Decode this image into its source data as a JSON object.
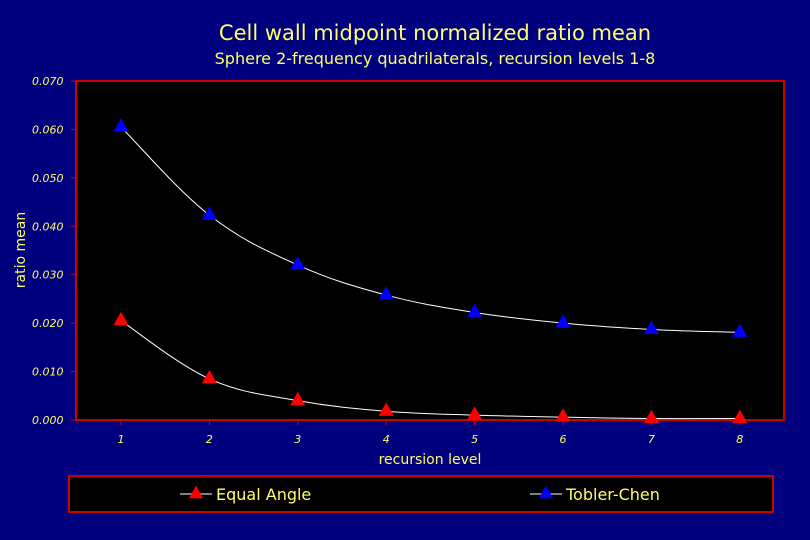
{
  "chart_data": {
    "type": "line",
    "title": "Cell wall midpoint normalized ratio mean",
    "subtitle": "Sphere 2-frequency quadrilaterals, recursion levels 1-8",
    "xlabel": "recursion level",
    "ylabel": "ratio mean",
    "categories": [
      "1",
      "2",
      "3",
      "4",
      "5",
      "6",
      "7",
      "8"
    ],
    "ylim": [
      0,
      0.07
    ],
    "yticks": [
      0.0,
      0.01,
      0.02,
      0.03,
      0.04,
      0.05,
      0.06,
      0.07
    ],
    "ytick_labels": [
      "0.000",
      "0.010",
      "0.020",
      "0.030",
      "0.040",
      "0.050",
      "0.060",
      "0.070"
    ],
    "series": [
      {
        "name": "Equal Angle",
        "color": "#ff0000",
        "values": [
          0.0205,
          0.0085,
          0.004,
          0.0018,
          0.001,
          0.0006,
          0.0003,
          0.0003
        ]
      },
      {
        "name": "Tobler-Chen",
        "color": "#0000ff",
        "values": [
          0.0605,
          0.0423,
          0.032,
          0.0258,
          0.0222,
          0.02,
          0.0187,
          0.0181
        ]
      }
    ],
    "legend_position": "bottom",
    "background_color": "#00007e",
    "plot_background": "#000000",
    "frame_color": "#cc0000",
    "text_color": "#ffff66",
    "line_color": "#ffffff"
  }
}
